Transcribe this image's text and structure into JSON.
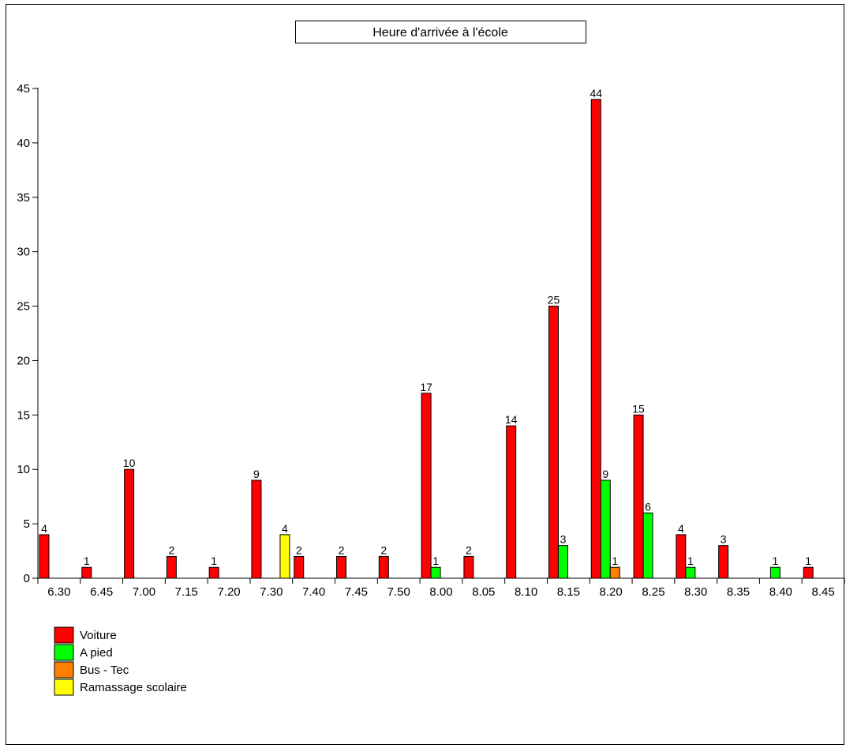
{
  "chart_data": {
    "type": "bar",
    "title": "Heure d'arrivée à l'école",
    "xlabel": "",
    "ylabel": "",
    "ylim": [
      0,
      45
    ],
    "yticks": [
      0,
      5,
      10,
      15,
      20,
      25,
      30,
      35,
      40,
      45
    ],
    "grid": false,
    "legend_position": "bottom-left",
    "categories": [
      "6.30",
      "6.45",
      "7.00",
      "7.15",
      "7.20",
      "7.30",
      "7.40",
      "7.45",
      "7.50",
      "8.00",
      "8.05",
      "8.10",
      "8.15",
      "8.20",
      "8.25",
      "8.30",
      "8.35",
      "8.40",
      "8.45"
    ],
    "series": [
      {
        "name": "Voiture",
        "color": "#ff0000",
        "values": [
          4,
          1,
          10,
          2,
          1,
          9,
          2,
          2,
          2,
          17,
          2,
          14,
          25,
          44,
          15,
          4,
          3,
          0,
          1
        ]
      },
      {
        "name": "A pied",
        "color": "#00ff00",
        "values": [
          0,
          0,
          0,
          0,
          0,
          0,
          0,
          0,
          0,
          1,
          0,
          0,
          3,
          9,
          6,
          1,
          0,
          1,
          0
        ]
      },
      {
        "name": "Bus - Tec",
        "color": "#ff8000",
        "values": [
          0,
          0,
          0,
          0,
          0,
          0,
          0,
          0,
          0,
          0,
          0,
          0,
          0,
          1,
          0,
          0,
          0,
          0,
          0
        ]
      },
      {
        "name": "Ramassage scolaire",
        "color": "#ffff00",
        "values": [
          0,
          0,
          0,
          0,
          0,
          4,
          0,
          0,
          0,
          0,
          0,
          0,
          0,
          0,
          0,
          0,
          0,
          0,
          0
        ]
      }
    ]
  }
}
